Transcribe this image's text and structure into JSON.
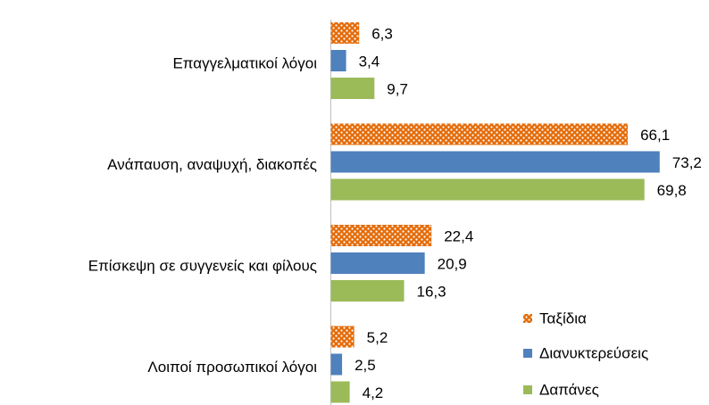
{
  "chart_data": {
    "type": "bar",
    "orientation": "horizontal",
    "categories": [
      "Επαγγελματικοί λόγοι",
      "Ανάπαυση, αναψυχή, διακοπές",
      "Επίσκεψη σε συγγενείς και φίλους",
      "Λοιποί προσωπικοί λόγοι"
    ],
    "series": [
      {
        "name": "Ταξίδια",
        "color": "#e46c0a",
        "pattern": "dots",
        "values": [
          6.3,
          66.1,
          22.4,
          5.2
        ],
        "value_labels": [
          "6,3",
          "66,1",
          "22,4",
          "5,2"
        ]
      },
      {
        "name": "Διανυκτερεύσεις",
        "color": "#4f81bd",
        "values": [
          3.4,
          73.2,
          20.9,
          2.5
        ],
        "value_labels": [
          "3,4",
          "73,2",
          "20,9",
          "2,5"
        ]
      },
      {
        "name": "Δαπάνες",
        "color": "#9bbb59",
        "values": [
          9.7,
          69.8,
          16.3,
          4.2
        ],
        "value_labels": [
          "9,7",
          "69,8",
          "16,3",
          "4,2"
        ]
      }
    ],
    "xlim": [
      0,
      80
    ],
    "legend": "lower right"
  }
}
